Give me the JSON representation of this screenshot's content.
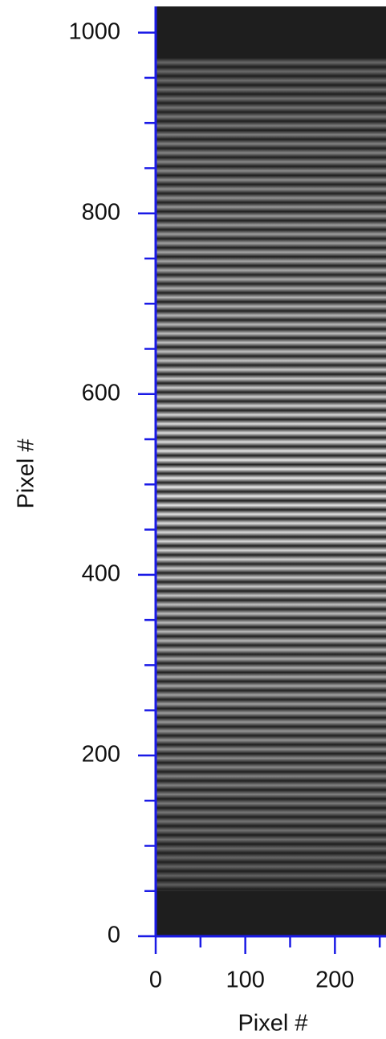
{
  "chart_data": {
    "type": "image",
    "xlabel": "Pixel #",
    "ylabel": "Pixel #",
    "xlim": [
      0,
      257
    ],
    "ylim": [
      0,
      1029
    ],
    "xticks": [
      0,
      100,
      200
    ],
    "yticks": [
      0,
      200,
      400,
      600,
      800,
      1000
    ],
    "xminorticks": [
      50,
      150,
      250
    ],
    "yminorticks": [
      50,
      100,
      150,
      250,
      300,
      350,
      450,
      500,
      550,
      650,
      700,
      750,
      850,
      900,
      950
    ],
    "fringe_ylim": [
      50,
      972
    ],
    "fringe_period": 10,
    "peak_y": 500,
    "background_color": "#1e1e1e",
    "fringe_color": "#f0f0f0",
    "axis_color": "#1a1ae6"
  }
}
